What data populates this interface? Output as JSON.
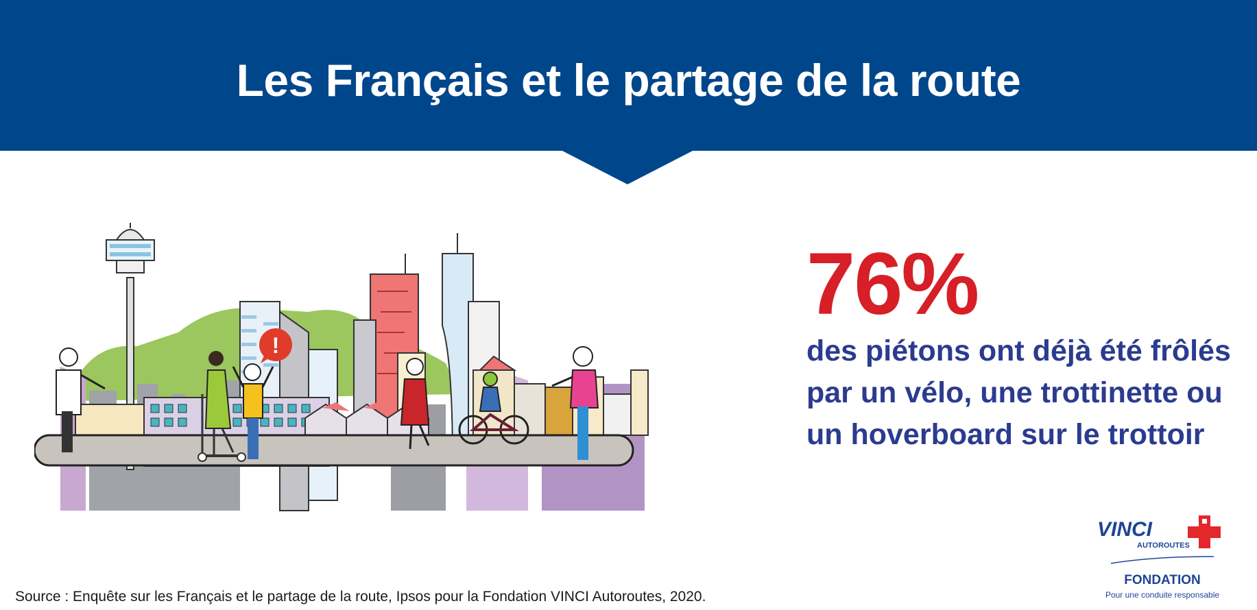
{
  "header": {
    "title": "Les Français et le partage de la route"
  },
  "statistic": {
    "value": "76%",
    "description": "des piétons ont déjà été frôlés par un vélo, une trottinette ou un hoverboard sur le trottoir"
  },
  "source": {
    "text": "Source : Enquête sur les Français et le partage de la route, Ipsos pour la Fondation VINCI Autoroutes, 2020."
  },
  "logo": {
    "brand": "VINCI",
    "sub_brand": "AUTOROUTES",
    "foundation": "FONDATION",
    "tagline": "Pour une conduite responsable"
  },
  "illustration": {
    "alert_symbol": "!"
  },
  "colors": {
    "banner": "#00468b",
    "percent": "#d61f26",
    "stat_text": "#2b3b8f"
  }
}
